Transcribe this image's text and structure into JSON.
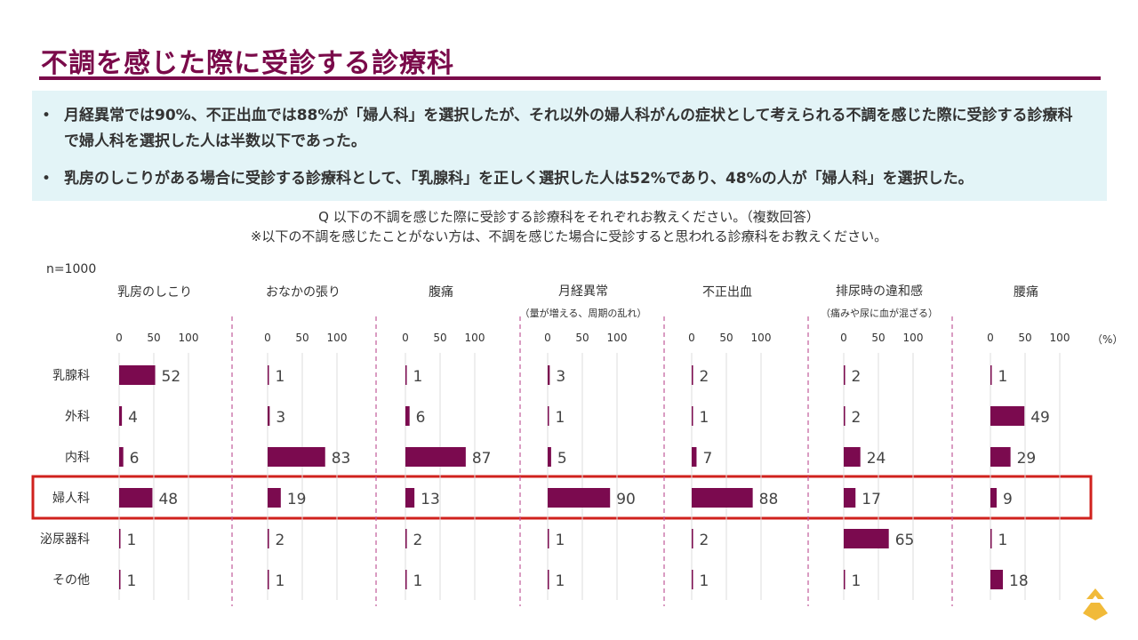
{
  "title": "不調を感じた際に受診する診療科",
  "summary": {
    "bullets": [
      "月経異常では90%、不正出血では88%が「婦人科」を選択したが、それ以外の婦人科がんの症状として考えられる不調を感じた際に受診する診療科で婦人科を選択した人は半数以下であった。",
      "乳房のしこりがある場合に受診する診療科として、「乳腺科」を正しく選択した人は52%であり、48%の人が「婦人科」を選択した。"
    ]
  },
  "question": {
    "line1": "Q 以下の不調を感じた際に受診する診療科をそれぞれお教えください。（複数回答）",
    "line2": "※以下の不調を感じたことがない方は、不調を感じた場合に受診すると思われる診療科をお教えください。"
  },
  "colors": {
    "bar": "#7b0a4f",
    "title": "#7a0a4a",
    "highlight": "#d0211d",
    "divider": "#c05a9a",
    "summary_bg": "#e3f4f7",
    "logo": "#f0b323"
  },
  "logo_icon": "company-logo-icon",
  "chart_data": {
    "type": "bar",
    "orientation": "horizontal",
    "n_label": "n=1000",
    "unit_label": "（%）",
    "xlim": [
      0,
      100
    ],
    "ticks": [
      "0",
      "50",
      "100"
    ],
    "tick_values": [
      0,
      50,
      100
    ],
    "categories": [
      "乳腺科",
      "外科",
      "内科",
      "婦人科",
      "泌尿器科",
      "その他"
    ],
    "highlight_category": "婦人科",
    "series": [
      {
        "name": "乳房のしこり",
        "subtitle": "",
        "values": [
          52,
          4,
          6,
          48,
          1,
          1
        ]
      },
      {
        "name": "おなかの張り",
        "subtitle": "",
        "values": [
          1,
          3,
          83,
          19,
          2,
          1
        ]
      },
      {
        "name": "腹痛",
        "subtitle": "",
        "values": [
          1,
          6,
          87,
          13,
          2,
          1
        ]
      },
      {
        "name": "月経異常",
        "subtitle": "（量が増える、周期の乱れ）",
        "values": [
          3,
          1,
          5,
          90,
          1,
          1
        ]
      },
      {
        "name": "不正出血",
        "subtitle": "",
        "values": [
          2,
          1,
          7,
          88,
          2,
          1
        ]
      },
      {
        "name": "排尿時の違和感",
        "subtitle": "（痛みや尿に血が混ざる）",
        "values": [
          2,
          2,
          24,
          17,
          65,
          1
        ]
      },
      {
        "name": "腰痛",
        "subtitle": "",
        "values": [
          1,
          49,
          29,
          9,
          1,
          18
        ]
      }
    ]
  }
}
